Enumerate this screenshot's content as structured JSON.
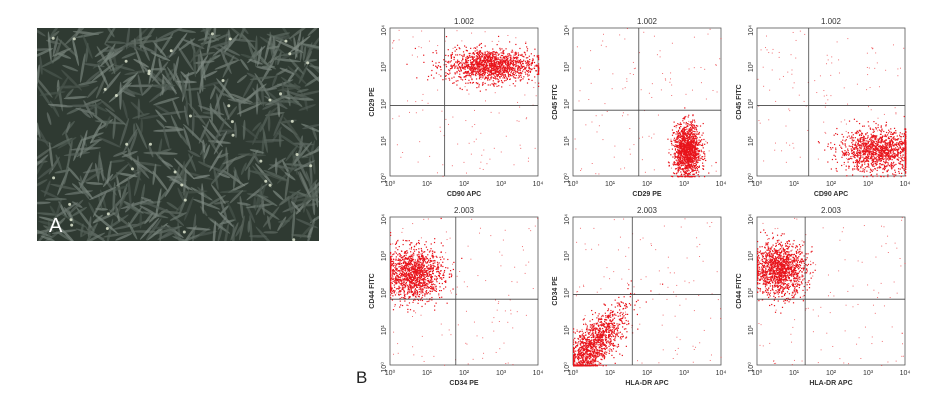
{
  "figure": {
    "panel_a": {
      "label": "A"
    },
    "panel_b": {
      "label": "B"
    }
  },
  "colors": {
    "dots": "#e8141b",
    "axes": "#555555",
    "text": "#333333",
    "micrograph_bg": "#2f3a32"
  },
  "chart_data": [
    {
      "type": "scatter",
      "title": "1.002",
      "xlabel": "CD90 APC",
      "ylabel": "CD29 PE",
      "xscale": "log",
      "yscale": "log",
      "xlim": [
        1,
        10000
      ],
      "ylim": [
        1,
        10000
      ],
      "gate": {
        "x": 30,
        "y": 80
      },
      "clusters": [
        {
          "cx": 500,
          "cy": 1000,
          "spread": [
            0.6,
            0.22
          ],
          "n": 1400
        }
      ]
    },
    {
      "type": "scatter",
      "title": "1.002",
      "xlabel": "CD29 PE",
      "ylabel": "CD45 FITC",
      "xscale": "log",
      "yscale": "log",
      "xlim": [
        1,
        10000
      ],
      "ylim": [
        1,
        10000
      ],
      "gate": {
        "x": 60,
        "y": 60
      },
      "clusters": [
        {
          "cx": 1200,
          "cy": 5,
          "spread": [
            0.18,
            0.35
          ],
          "n": 1300
        }
      ]
    },
    {
      "type": "scatter",
      "title": "1.002",
      "xlabel": "CD90 APC",
      "ylabel": "CD45 FITC",
      "xscale": "log",
      "yscale": "log",
      "xlim": [
        1,
        10000
      ],
      "ylim": [
        1,
        10000
      ],
      "gate": {
        "x": 25,
        "y": 80
      },
      "clusters": [
        {
          "cx": 2000,
          "cy": 5,
          "spread": [
            0.55,
            0.28
          ],
          "n": 1300
        }
      ]
    },
    {
      "type": "scatter",
      "title": "2.003",
      "xlabel": "CD34 PE",
      "ylabel": "CD44 FITC",
      "xscale": "log",
      "yscale": "log",
      "xlim": [
        1,
        10000
      ],
      "ylim": [
        1,
        10000
      ],
      "gate": {
        "x": 60,
        "y": 60
      },
      "clusters": [
        {
          "cx": 4,
          "cy": 300,
          "spread": [
            0.4,
            0.35
          ],
          "n": 1300
        }
      ]
    },
    {
      "type": "scatter",
      "title": "2.003",
      "xlabel": "HLA-DR APC",
      "ylabel": "CD34 PE",
      "xscale": "log",
      "yscale": "log",
      "xlim": [
        1,
        10000
      ],
      "ylim": [
        1,
        10000
      ],
      "gate": {
        "x": 40,
        "y": 80
      },
      "clusters": [
        {
          "cx": 3,
          "cy": 3,
          "spread": [
            0.45,
            0.35
          ],
          "n": 1400,
          "diag": true
        }
      ]
    },
    {
      "type": "scatter",
      "title": "2.003",
      "xlabel": "HLA-DR APC",
      "ylabel": "CD44 FITC",
      "xscale": "log",
      "yscale": "log",
      "xlim": [
        1,
        10000
      ],
      "ylim": [
        1,
        10000
      ],
      "gate": {
        "x": 20,
        "y": 60
      },
      "clusters": [
        {
          "cx": 4,
          "cy": 400,
          "spread": [
            0.35,
            0.35
          ],
          "n": 1300
        }
      ]
    }
  ]
}
